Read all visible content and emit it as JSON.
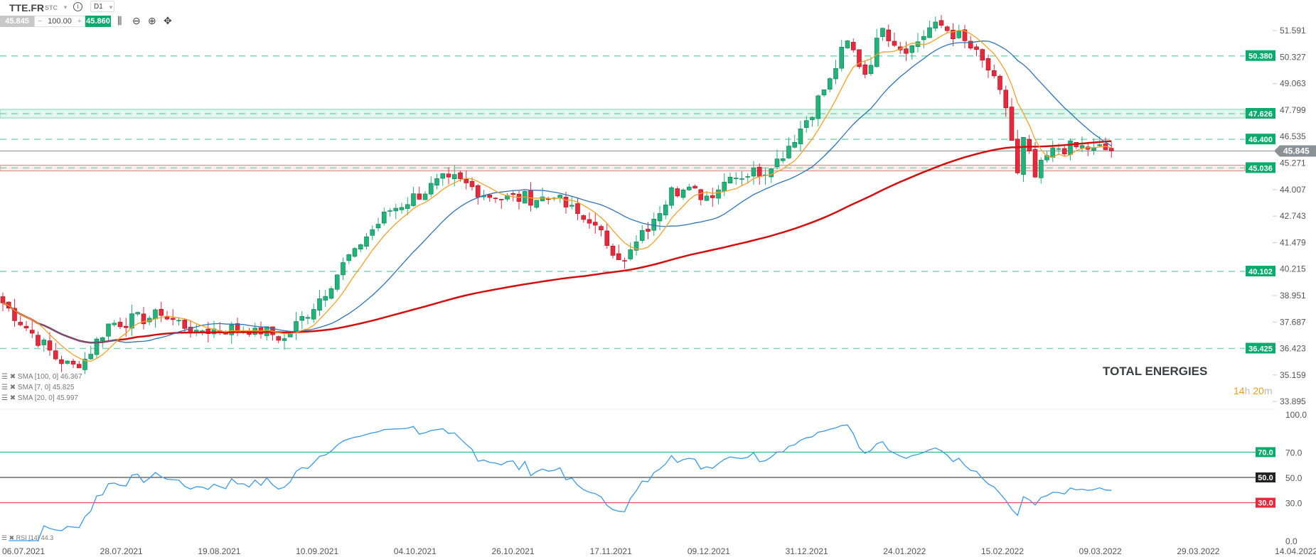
{
  "toolbar": {
    "symbol": "TTE.FR",
    "type": "STC",
    "info_icon": "i",
    "timeframe": "D1",
    "bid": "45.845",
    "minus": "−",
    "quantity": "100.00",
    "plus": "+",
    "ask": "45.860"
  },
  "colors": {
    "up": "#20b47a",
    "down": "#e8283c",
    "sma7": "#f7a021",
    "sma20": "#2c74b8",
    "sma100": "#d40d0d",
    "rsi": "#3a9ae8",
    "accent": "#0bab6e"
  },
  "indicators": [
    {
      "label": "SMA [100, 0] 46.367"
    },
    {
      "label": "SMA [7, 0] 45.825"
    },
    {
      "label": "SMA [20, 0] 45.997"
    }
  ],
  "rsi_label": "RSI [14] 44.3",
  "instrument_title": "TOTAL ENERGIES",
  "timer": {
    "h": "14",
    "h_unit": "h",
    "m": "20",
    "m_unit": "m"
  },
  "chart_data": {
    "type": "candlestick",
    "price_axis": {
      "ticks": [
        "51.591",
        "50.327",
        "49.063",
        "47.799",
        "46.535",
        "45.271",
        "44.007",
        "42.743",
        "41.479",
        "40.215",
        "38.951",
        "37.687",
        "36.423",
        "35.159",
        "33.895"
      ],
      "min": 33.895,
      "max": 51.591
    },
    "rsi_axis": {
      "ticks": [
        "100.0",
        "70.0",
        "50.0",
        "30.0",
        "0.0"
      ],
      "levels": [
        70,
        50,
        30
      ]
    },
    "x_ticks": [
      "06.07.2021",
      "28.07.2021",
      "19.08.2021",
      "10.09.2021",
      "04.10.2021",
      "26.10.2021",
      "17.11.2021",
      "09.12.2021",
      "31.12.2021",
      "24.01.2022",
      "15.02.2022",
      "09.03.2022",
      "29.03.2022",
      "14.04.2022"
    ],
    "close_keyframes": [
      [
        0,
        38.6
      ],
      [
        10,
        35.7
      ],
      [
        13,
        35.5
      ],
      [
        18,
        37.6
      ],
      [
        27,
        38.0
      ],
      [
        33,
        37.3
      ],
      [
        43,
        37.4
      ],
      [
        48,
        36.9
      ],
      [
        54,
        38.8
      ],
      [
        60,
        41.2
      ],
      [
        66,
        43.0
      ],
      [
        76,
        44.6
      ],
      [
        84,
        43.6
      ],
      [
        94,
        43.6
      ],
      [
        100,
        42.4
      ],
      [
        106,
        40.6
      ],
      [
        111,
        42.6
      ],
      [
        114,
        44.1
      ],
      [
        120,
        43.7
      ],
      [
        124,
        44.6
      ],
      [
        131,
        45.0
      ],
      [
        137,
        47.3
      ],
      [
        141,
        49.3
      ],
      [
        144,
        51.1
      ],
      [
        147,
        49.5
      ],
      [
        150,
        51.7
      ],
      [
        154,
        50.5
      ],
      [
        159,
        52.0
      ],
      [
        164,
        51.1
      ],
      [
        168,
        49.7
      ],
      [
        171,
        47.9
      ],
      [
        173,
        44.8
      ],
      [
        174,
        46.5
      ],
      [
        176,
        44.6
      ],
      [
        179,
        46.0
      ],
      [
        186,
        46.0
      ],
      [
        189,
        45.85
      ]
    ],
    "levels": [
      {
        "value": 50.38,
        "label": "50.380",
        "style": "dashed"
      },
      {
        "value": 47.626,
        "label": "47.626",
        "style": "zone-green"
      },
      {
        "value": 46.4,
        "label": "46.400",
        "style": "dashed"
      },
      {
        "value": 45.036,
        "label": "45.036",
        "style": "zone-red"
      },
      {
        "value": 40.102,
        "label": "40.102",
        "style": "dashed"
      },
      {
        "value": 36.425,
        "label": "36.425",
        "style": "dashed"
      }
    ],
    "current_price": {
      "value": 45.845,
      "label": "45.845"
    }
  }
}
